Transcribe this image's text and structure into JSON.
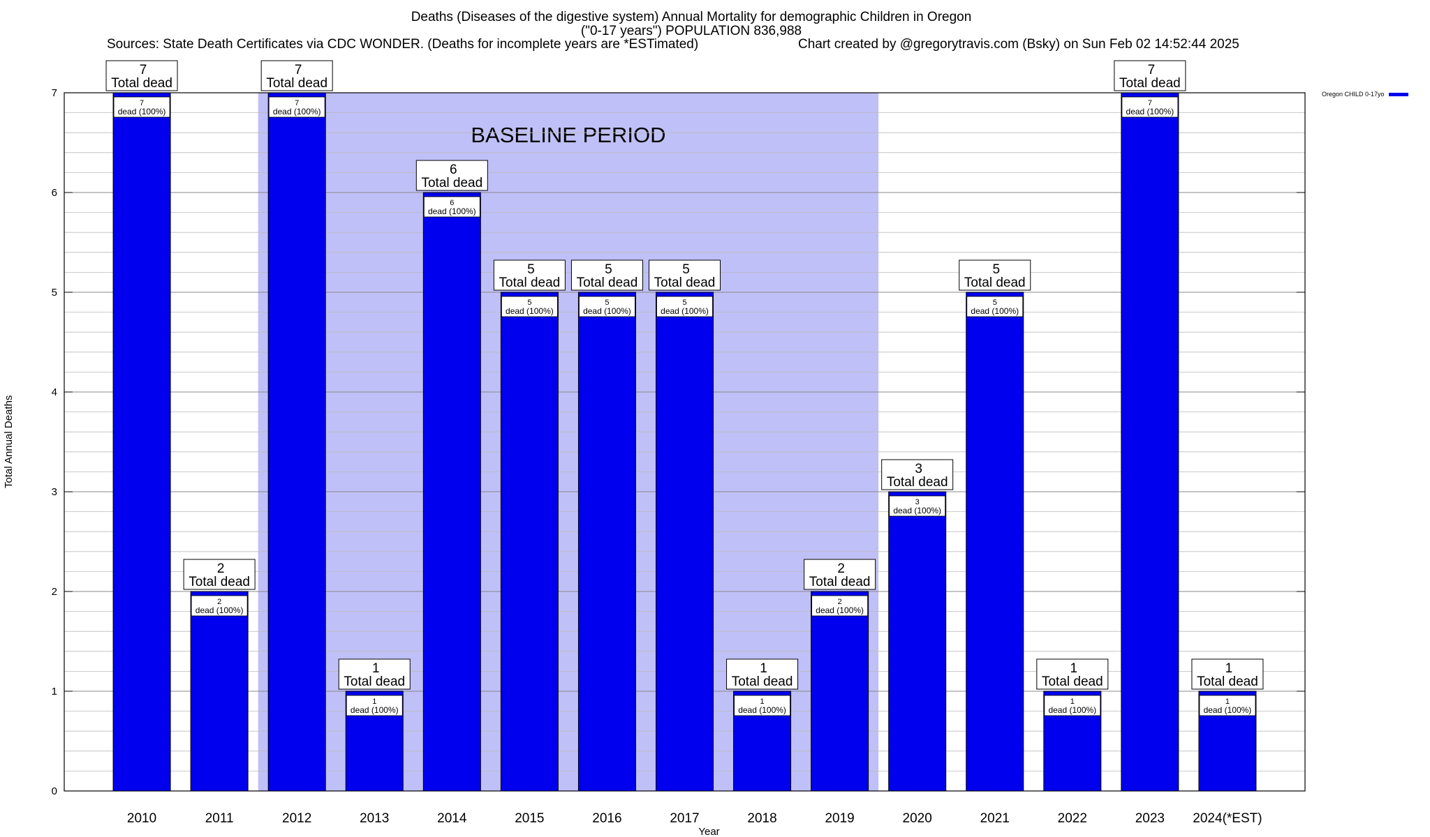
{
  "titles": {
    "line1": "Deaths (Diseases of the digestive system) Annual Mortality for demographic Children in Oregon",
    "line2": "(\"0-17 years\") POPULATION 836,988",
    "sources": "Sources: State Death Certificates via CDC WONDER. (Deaths for incomplete years are *ESTimated)",
    "credit": "Chart created by @gregorytravis.com (Bsky) on Sun Feb 02 14:52:44 2025"
  },
  "legend": {
    "label": "Oregon CHILD 0-17yo",
    "color": "#0000ee"
  },
  "colors": {
    "bar": "#0000ee",
    "baseline": "#c0c0f8",
    "grid": "#999999"
  },
  "chart_data": {
    "type": "bar",
    "categories": [
      "2010",
      "2011",
      "2012",
      "2013",
      "2014",
      "2015",
      "2016",
      "2017",
      "2018",
      "2019",
      "2020",
      "2021",
      "2022",
      "2023",
      "2024(*EST)"
    ],
    "series": [
      {
        "name": "Oregon CHILD 0-17yo",
        "values": [
          7,
          2,
          7,
          1,
          6,
          5,
          5,
          5,
          1,
          2,
          3,
          5,
          1,
          7,
          1
        ]
      }
    ],
    "top_label_suffix": "Total dead",
    "inner_labels": [
      "dead (100%)",
      "dead (100%)",
      "dead (100%)",
      "dead (100%)",
      "dead (100%)",
      "dead (100%)",
      "dead (100%)",
      "dead (100%)",
      "dead (100%)",
      "dead (100%)",
      "dead (100%)",
      "dead (100%)",
      "dead (100%)",
      "dead (100%)",
      "dead (100%)"
    ],
    "xlabel": "Year",
    "ylabel": "Total Annual Deaths",
    "ylim": [
      0,
      7
    ],
    "yticks": [
      0,
      1,
      2,
      3,
      4,
      5,
      6,
      7
    ],
    "grid": true,
    "shaded_region": {
      "label": "BASELINE PERIOD",
      "from": "2012",
      "to": "2019"
    },
    "legend_position": "top-right"
  }
}
